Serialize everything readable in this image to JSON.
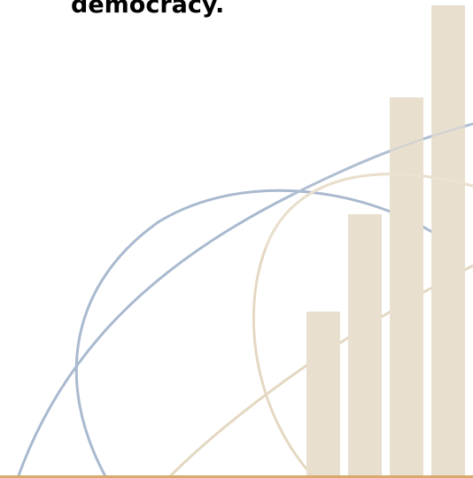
{
  "headline": {
    "text": "democracy."
  },
  "decoration": {
    "kind": "abstract bar-and-arc graphic",
    "bar_color": "#e8dfcf",
    "blue_arc_color": "#a9b9cf",
    "tan_arc_color": "#e4d8c2",
    "baseline_color": "#d9aa6e"
  }
}
